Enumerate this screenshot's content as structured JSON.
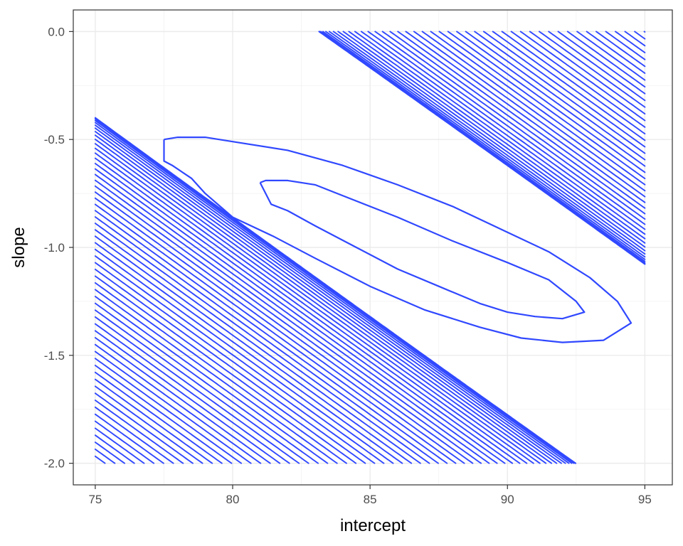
{
  "chart_data": {
    "type": "contour",
    "xlabel": "intercept",
    "ylabel": "slope",
    "xlim": [
      74.2,
      96
    ],
    "ylim": [
      -2.1,
      0.1
    ],
    "x_ticks": [
      75,
      80,
      85,
      90,
      95
    ],
    "y_ticks": [
      0.0,
      -0.5,
      -1.0,
      -1.5,
      -2.0
    ],
    "x_tick_labels": [
      "75",
      "80",
      "85",
      "90",
      "95"
    ],
    "y_tick_labels": [
      "0.0",
      "-0.5",
      "-1.0",
      "-1.5",
      "-2.0"
    ],
    "grid": true,
    "theme": "bw",
    "line_color": "#3048ff",
    "grid_domain": {
      "x": [
        75,
        95
      ],
      "y": [
        -2.0,
        0.0
      ]
    },
    "surface": {
      "model": "quadratic",
      "center": [
        88.7,
        -1.08
      ],
      "a": 1.0,
      "b": 21.8,
      "c": 120.0,
      "note_levels_fill_domain": true
    },
    "closed_contours": [
      {
        "points": [
          [
            81.0,
            -0.7
          ],
          [
            81.2,
            -0.69
          ],
          [
            82.0,
            -0.69
          ],
          [
            83.0,
            -0.71
          ],
          [
            84.0,
            -0.76
          ],
          [
            86.0,
            -0.86
          ],
          [
            88.0,
            -0.97
          ],
          [
            90.0,
            -1.07
          ],
          [
            91.5,
            -1.15
          ],
          [
            92.5,
            -1.25
          ],
          [
            92.8,
            -1.3
          ],
          [
            92.0,
            -1.33
          ],
          [
            91.0,
            -1.32
          ],
          [
            90.0,
            -1.3
          ],
          [
            89.0,
            -1.26
          ],
          [
            87.5,
            -1.18
          ],
          [
            86.0,
            -1.1
          ],
          [
            84.5,
            -1.0
          ],
          [
            83.0,
            -0.9
          ],
          [
            82.0,
            -0.83
          ],
          [
            81.4,
            -0.8
          ],
          [
            81.0,
            -0.7
          ]
        ]
      },
      {
        "points": [
          [
            77.5,
            -0.5
          ],
          [
            78.0,
            -0.49
          ],
          [
            79.0,
            -0.49
          ],
          [
            80.0,
            -0.51
          ],
          [
            82.0,
            -0.55
          ],
          [
            84.0,
            -0.62
          ],
          [
            86.0,
            -0.71
          ],
          [
            88.0,
            -0.81
          ],
          [
            90.0,
            -0.93
          ],
          [
            91.5,
            -1.02
          ],
          [
            93.0,
            -1.14
          ],
          [
            94.0,
            -1.25
          ],
          [
            94.5,
            -1.35
          ],
          [
            93.5,
            -1.43
          ],
          [
            92.0,
            -1.44
          ],
          [
            90.5,
            -1.42
          ],
          [
            89.0,
            -1.37
          ],
          [
            87.0,
            -1.29
          ],
          [
            85.0,
            -1.18
          ],
          [
            83.0,
            -1.05
          ],
          [
            81.5,
            -0.95
          ],
          [
            80.0,
            -0.86
          ],
          [
            79.0,
            -0.75
          ],
          [
            78.5,
            -0.68
          ],
          [
            77.8,
            -0.62
          ],
          [
            77.5,
            -0.6
          ],
          [
            77.5,
            -0.5
          ]
        ]
      }
    ],
    "contour_levels": 60
  }
}
